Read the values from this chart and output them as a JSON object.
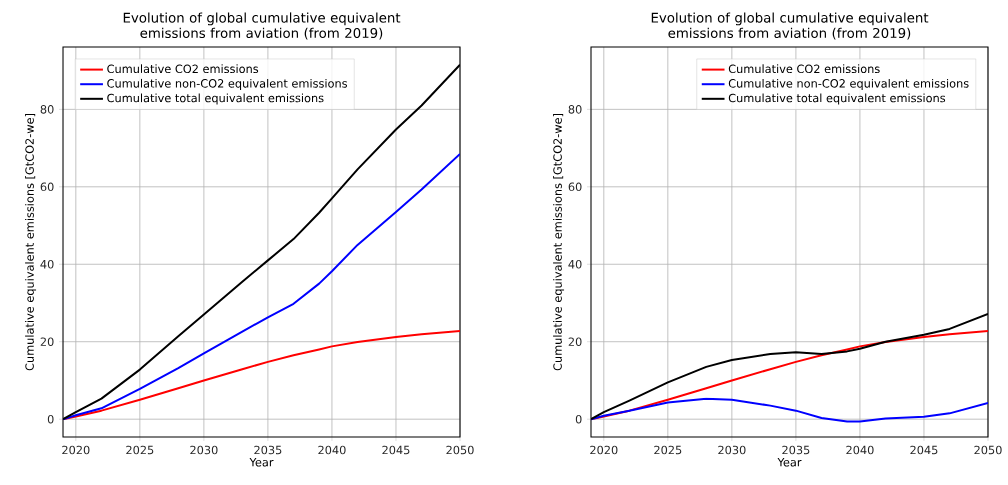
{
  "chart_data": [
    {
      "type": "line",
      "title": "Evolution of global cumulative equivalent emissions from aviation (from 2019)",
      "xlabel": "Year",
      "ylabel": "Cumulative equivalent emissions [GtCO2-we]",
      "x": [
        2019,
        2020,
        2022,
        2025,
        2028,
        2030,
        2033,
        2035,
        2037,
        2039,
        2040,
        2042,
        2045,
        2047,
        2050
      ],
      "series": [
        {
          "name": "Cumulative CO2 emissions",
          "color": "#ff0000",
          "values": [
            0,
            0.7,
            2.2,
            5,
            8,
            10,
            12.9,
            14.8,
            16.5,
            18,
            18.8,
            19.9,
            21.2,
            21.9,
            22.8
          ]
        },
        {
          "name": "Cumulative non-CO2 equivalent emissions",
          "color": "#0000ff",
          "values": [
            0,
            1,
            2.8,
            7.8,
            13.2,
            17,
            22.6,
            26.3,
            29.8,
            35,
            38.2,
            45,
            53.5,
            59.3,
            68.5
          ]
        },
        {
          "name": "Cumulative total equivalent emissions",
          "color": "#000000",
          "values": [
            0,
            1.8,
            5.3,
            12.8,
            21.4,
            27,
            35.5,
            41,
            46.5,
            53.3,
            57,
            64.5,
            74.8,
            81,
            91.5
          ]
        }
      ],
      "xlim": [
        2019,
        2050
      ],
      "ylim": [
        -4.6,
        96.1
      ],
      "xticks": [
        2020,
        2025,
        2030,
        2035,
        2040,
        2045,
        2050
      ],
      "yticks": [
        0,
        20,
        40,
        60,
        80
      ],
      "grid": true,
      "legend": "top left",
      "line_style": "solid"
    },
    {
      "type": "line",
      "title": "Evolution of global cumulative equivalent emissions from aviation (from 2019)",
      "xlabel": "Year",
      "ylabel": "Cumulative equivalent emissions [GtCO2-we]",
      "x": [
        2019,
        2020,
        2022,
        2025,
        2028,
        2030,
        2033,
        2035,
        2037,
        2039,
        2040,
        2042,
        2045,
        2047,
        2050
      ],
      "series": [
        {
          "name": "Cumulative CO2 emissions",
          "color": "#ff0000",
          "values": [
            0,
            0.7,
            2.2,
            5,
            8,
            10,
            12.9,
            14.8,
            16.5,
            18,
            18.8,
            19.9,
            21.2,
            21.9,
            22.8
          ]
        },
        {
          "name": "Cumulative non-CO2 equivalent emissions",
          "color": "#0000ff",
          "values": [
            0,
            0.9,
            2.2,
            4.3,
            5.3,
            5,
            3.5,
            2.2,
            0.3,
            -0.6,
            -0.6,
            0.2,
            0.6,
            1.5,
            4.2
          ]
        },
        {
          "name": "Cumulative total equivalent emissions",
          "color": "#000000",
          "values": [
            0,
            1.8,
            4.8,
            9.5,
            13.5,
            15.3,
            16.8,
            17.3,
            16.8,
            17.5,
            18.2,
            20,
            21.8,
            23.3,
            27.2
          ]
        }
      ],
      "xlim": [
        2019,
        2050
      ],
      "ylim": [
        -4.6,
        96.1
      ],
      "xticks": [
        2020,
        2025,
        2030,
        2035,
        2040,
        2045,
        2050
      ],
      "yticks": [
        0,
        20,
        40,
        60,
        80
      ],
      "grid": true,
      "legend": "top right",
      "line_style": "solid"
    }
  ]
}
